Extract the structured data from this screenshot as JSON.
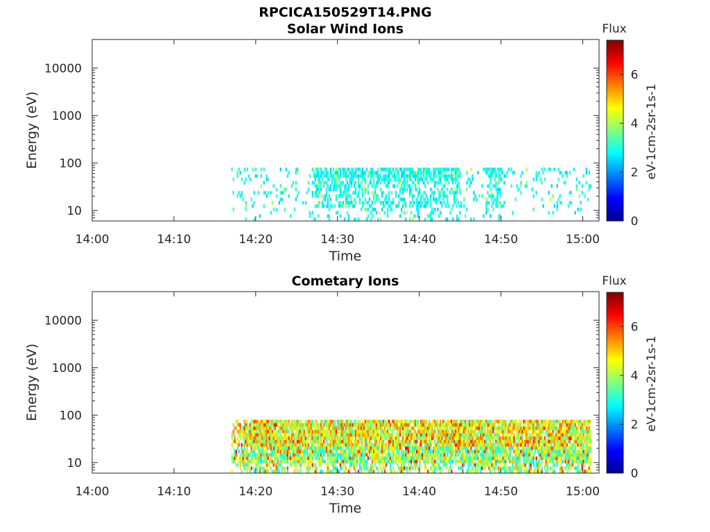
{
  "figure": {
    "filename": "RPCICA150529T14.PNG"
  },
  "chart_data": [
    {
      "type": "heatmap",
      "title": "Solar Wind Ions",
      "xlabel": "Time",
      "ylabel": "Energy (eV)",
      "x_ticks": [
        "14:00",
        "14:10",
        "14:20",
        "14:30",
        "14:40",
        "14:50",
        "15:00"
      ],
      "x_range_minutes": [
        0,
        62
      ],
      "y_scale": "log",
      "y_ticks": [
        "10",
        "100",
        "1000",
        "10000"
      ],
      "y_range": [
        6,
        40000
      ],
      "colorbar": {
        "title": "Flux",
        "label": "eV-1cm-2sr-1s-1",
        "ticks": [
          "0",
          "2",
          "4",
          "6"
        ],
        "range": [
          0,
          7.4
        ],
        "colormap": "jet"
      },
      "data_extent": {
        "time_start": "14:17",
        "time_end": "15:01",
        "energy_min_eV": 6,
        "energy_max_eV": 80,
        "typical_flux": "2-3 (cyan), sporadic",
        "dense_intervals": [
          "14:27-14:45",
          "14:48-14:50"
        ]
      }
    },
    {
      "type": "heatmap",
      "title": "Cometary Ions",
      "xlabel": "Time",
      "ylabel": "Energy (eV)",
      "x_ticks": [
        "14:00",
        "14:10",
        "14:20",
        "14:30",
        "14:40",
        "14:50",
        "15:00"
      ],
      "x_range_minutes": [
        0,
        62
      ],
      "y_scale": "log",
      "y_ticks": [
        "10",
        "100",
        "1000",
        "10000"
      ],
      "y_range": [
        6,
        40000
      ],
      "colorbar": {
        "title": "Flux",
        "label": "eV-1cm-2sr-1s-1",
        "ticks": [
          "0",
          "2",
          "4",
          "6"
        ],
        "range": [
          0,
          7.4
        ],
        "colormap": "jet"
      },
      "data_extent": {
        "time_start": "14:17",
        "time_end": "15:01",
        "energy_min_eV": 6,
        "energy_max_eV": 80,
        "typical_flux": "4-6 (yellow-orange), dense",
        "peak_flux": 6.5
      }
    }
  ]
}
